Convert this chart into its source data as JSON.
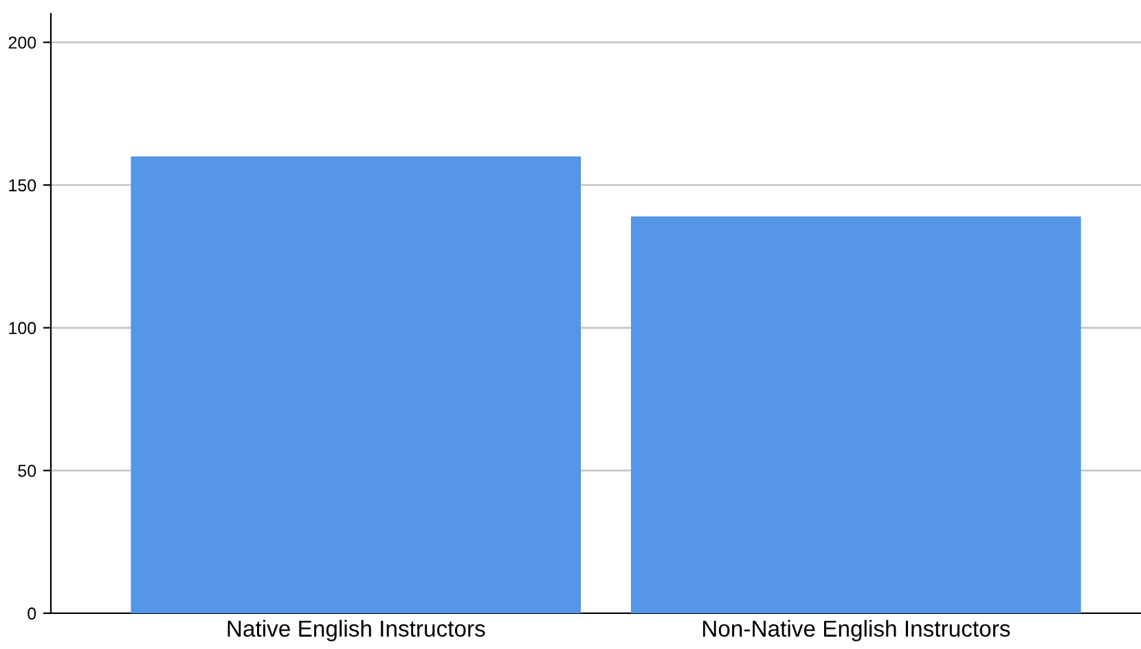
{
  "chart_data": {
    "type": "bar",
    "categories": [
      "Native English Instructors",
      "Non-Native English Instructors"
    ],
    "values": [
      160,
      139
    ],
    "color": "#5596e6",
    "ylim": [
      0,
      210
    ],
    "yticks": [
      0,
      50,
      100,
      150,
      200
    ],
    "grid": "y"
  }
}
